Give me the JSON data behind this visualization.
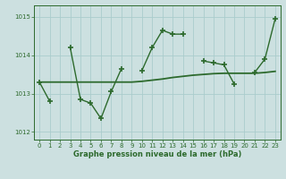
{
  "hours": [
    0,
    1,
    2,
    3,
    4,
    5,
    6,
    7,
    8,
    9,
    10,
    11,
    12,
    13,
    14,
    15,
    16,
    17,
    18,
    19,
    20,
    21,
    22,
    23
  ],
  "pressure": [
    1013.3,
    1012.8,
    null,
    1014.2,
    1012.85,
    1012.75,
    1012.35,
    1013.05,
    1013.65,
    null,
    1013.6,
    1014.2,
    1014.65,
    1014.55,
    1014.55,
    null,
    1013.85,
    1013.8,
    1013.75,
    1013.25,
    null,
    1013.55,
    1013.9,
    1014.95
  ],
  "smooth": [
    1013.3,
    1013.3,
    1013.3,
    1013.3,
    1013.3,
    1013.3,
    1013.3,
    1013.3,
    1013.3,
    1013.3,
    1013.32,
    1013.35,
    1013.38,
    1013.42,
    1013.45,
    1013.48,
    1013.5,
    1013.52,
    1013.53,
    1013.53,
    1013.53,
    1013.53,
    1013.55,
    1013.58
  ],
  "line_color": "#2d6a2d",
  "bg_color": "#cce0e0",
  "grid_color": "#aacccc",
  "xlabel": "Graphe pression niveau de la mer (hPa)",
  "xlim_min": -0.5,
  "xlim_max": 23.5,
  "ylim_min": 1011.8,
  "ylim_max": 1015.3,
  "yticks": [
    1012,
    1013,
    1014,
    1015
  ],
  "xticks": [
    0,
    1,
    2,
    3,
    4,
    5,
    6,
    7,
    8,
    9,
    10,
    11,
    12,
    13,
    14,
    15,
    16,
    17,
    18,
    19,
    20,
    21,
    22,
    23
  ]
}
